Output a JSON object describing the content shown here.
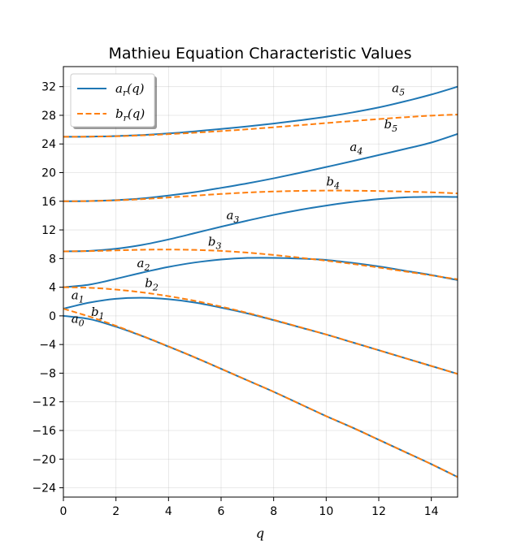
{
  "chart_data": {
    "type": "line",
    "title": "Mathieu Equation Characteristic Values",
    "xlabel": "q",
    "ylabel": "",
    "xlim": [
      0,
      15
    ],
    "ylim": [
      -25.3,
      34.8
    ],
    "xticks": [
      "0",
      "2",
      "4",
      "6",
      "8",
      "10",
      "12",
      "14"
    ],
    "yticks": [
      "−24",
      "−20",
      "−16",
      "−12",
      "−8",
      "−4",
      "0",
      "4",
      "8",
      "12",
      "16",
      "20",
      "24",
      "28",
      "32"
    ],
    "grid": true,
    "legend": {
      "placement": "top-left",
      "entries": [
        {
          "var": "a",
          "sub": "r",
          "arg": "(q)",
          "style": "solid",
          "color": "#1f77b4"
        },
        {
          "var": "b",
          "sub": "r",
          "arg": "(q)",
          "style": "dashed",
          "color": "#ff7f0e"
        }
      ]
    },
    "colors": {
      "a": "#1f77b4",
      "b": "#ff7f0e"
    },
    "x": [
      0,
      1,
      2,
      3,
      4,
      5,
      6,
      7,
      8,
      9,
      10,
      11,
      12,
      13,
      14,
      15
    ],
    "series": [
      {
        "key": "a0",
        "family": "a",
        "values": [
          0,
          -0.46,
          -1.51,
          -2.83,
          -4.29,
          -5.8,
          -7.39,
          -9.0,
          -10.6,
          -12.3,
          -14.0,
          -15.6,
          -17.3,
          -19.0,
          -20.7,
          -22.5
        ]
      },
      {
        "key": "a1",
        "family": "a",
        "values": [
          1.0,
          1.86,
          2.38,
          2.52,
          2.32,
          1.86,
          1.15,
          0.34,
          -0.6,
          -1.6,
          -2.6,
          -3.7,
          -4.8,
          -5.9,
          -7.0,
          -8.1
        ]
      },
      {
        "key": "a2",
        "family": "a",
        "values": [
          4.0,
          4.37,
          5.17,
          6.04,
          6.83,
          7.45,
          7.87,
          8.09,
          8.1,
          8.0,
          7.8,
          7.4,
          6.9,
          6.3,
          5.7,
          5.0
        ]
      },
      {
        "key": "a3",
        "family": "a",
        "values": [
          9.0,
          9.08,
          9.37,
          9.91,
          10.67,
          11.55,
          12.45,
          13.3,
          14.1,
          14.8,
          15.4,
          15.9,
          16.3,
          16.55,
          16.62,
          16.6
        ]
      },
      {
        "key": "a4",
        "family": "a",
        "values": [
          16.0,
          16.03,
          16.16,
          16.4,
          16.8,
          17.28,
          17.87,
          18.5,
          19.2,
          19.97,
          20.78,
          21.6,
          22.45,
          23.3,
          24.2,
          25.4
        ]
      },
      {
        "key": "a5",
        "family": "a",
        "values": [
          25.0,
          25.02,
          25.1,
          25.25,
          25.47,
          25.76,
          26.1,
          26.45,
          26.85,
          27.3,
          27.8,
          28.4,
          29.1,
          29.95,
          30.9,
          32.0
        ]
      },
      {
        "key": "b1",
        "family": "b",
        "values": [
          1.0,
          -0.11,
          -1.39,
          -2.79,
          -4.26,
          -5.79,
          -7.39,
          -9.0,
          -10.6,
          -12.3,
          -14.0,
          -15.6,
          -17.3,
          -19.0,
          -20.7,
          -22.5
        ]
      },
      {
        "key": "b2",
        "family": "b",
        "values": [
          4.0,
          3.92,
          3.67,
          3.28,
          2.75,
          2.1,
          1.29,
          0.42,
          -0.55,
          -1.57,
          -2.6,
          -3.7,
          -4.8,
          -5.9,
          -7.0,
          -8.1
        ]
      },
      {
        "key": "b3",
        "family": "b",
        "values": [
          9.0,
          9.05,
          9.14,
          9.23,
          9.26,
          9.21,
          9.07,
          8.83,
          8.5,
          8.12,
          7.7,
          7.25,
          6.75,
          6.2,
          5.65,
          5.1
        ]
      },
      {
        "key": "b4",
        "family": "b",
        "values": [
          16.0,
          16.03,
          16.13,
          16.3,
          16.53,
          16.78,
          17.02,
          17.22,
          17.36,
          17.45,
          17.49,
          17.48,
          17.43,
          17.35,
          17.25,
          17.1
        ]
      },
      {
        "key": "b5",
        "family": "b",
        "values": [
          25.0,
          25.02,
          25.08,
          25.2,
          25.37,
          25.57,
          25.8,
          26.05,
          26.33,
          26.62,
          26.92,
          27.2,
          27.47,
          27.73,
          27.96,
          28.1
        ]
      }
    ],
    "annotations": [
      {
        "var": "a",
        "sub": "0",
        "x": 0.3,
        "y": -1.0
      },
      {
        "var": "b",
        "sub": "1",
        "x": 1.05,
        "y": 0.0
      },
      {
        "var": "a",
        "sub": "1",
        "x": 0.3,
        "y": 2.3
      },
      {
        "var": "b",
        "sub": "2",
        "x": 3.1,
        "y": 4.0
      },
      {
        "var": "a",
        "sub": "2",
        "x": 2.8,
        "y": 6.8
      },
      {
        "var": "b",
        "sub": "3",
        "x": 5.5,
        "y": 9.8
      },
      {
        "var": "a",
        "sub": "3",
        "x": 6.2,
        "y": 13.5
      },
      {
        "var": "b",
        "sub": "4",
        "x": 10.0,
        "y": 18.2
      },
      {
        "var": "a",
        "sub": "4",
        "x": 10.9,
        "y": 23.0
      },
      {
        "var": "b",
        "sub": "5",
        "x": 12.2,
        "y": 26.2
      },
      {
        "var": "a",
        "sub": "5",
        "x": 12.5,
        "y": 31.2
      }
    ]
  }
}
